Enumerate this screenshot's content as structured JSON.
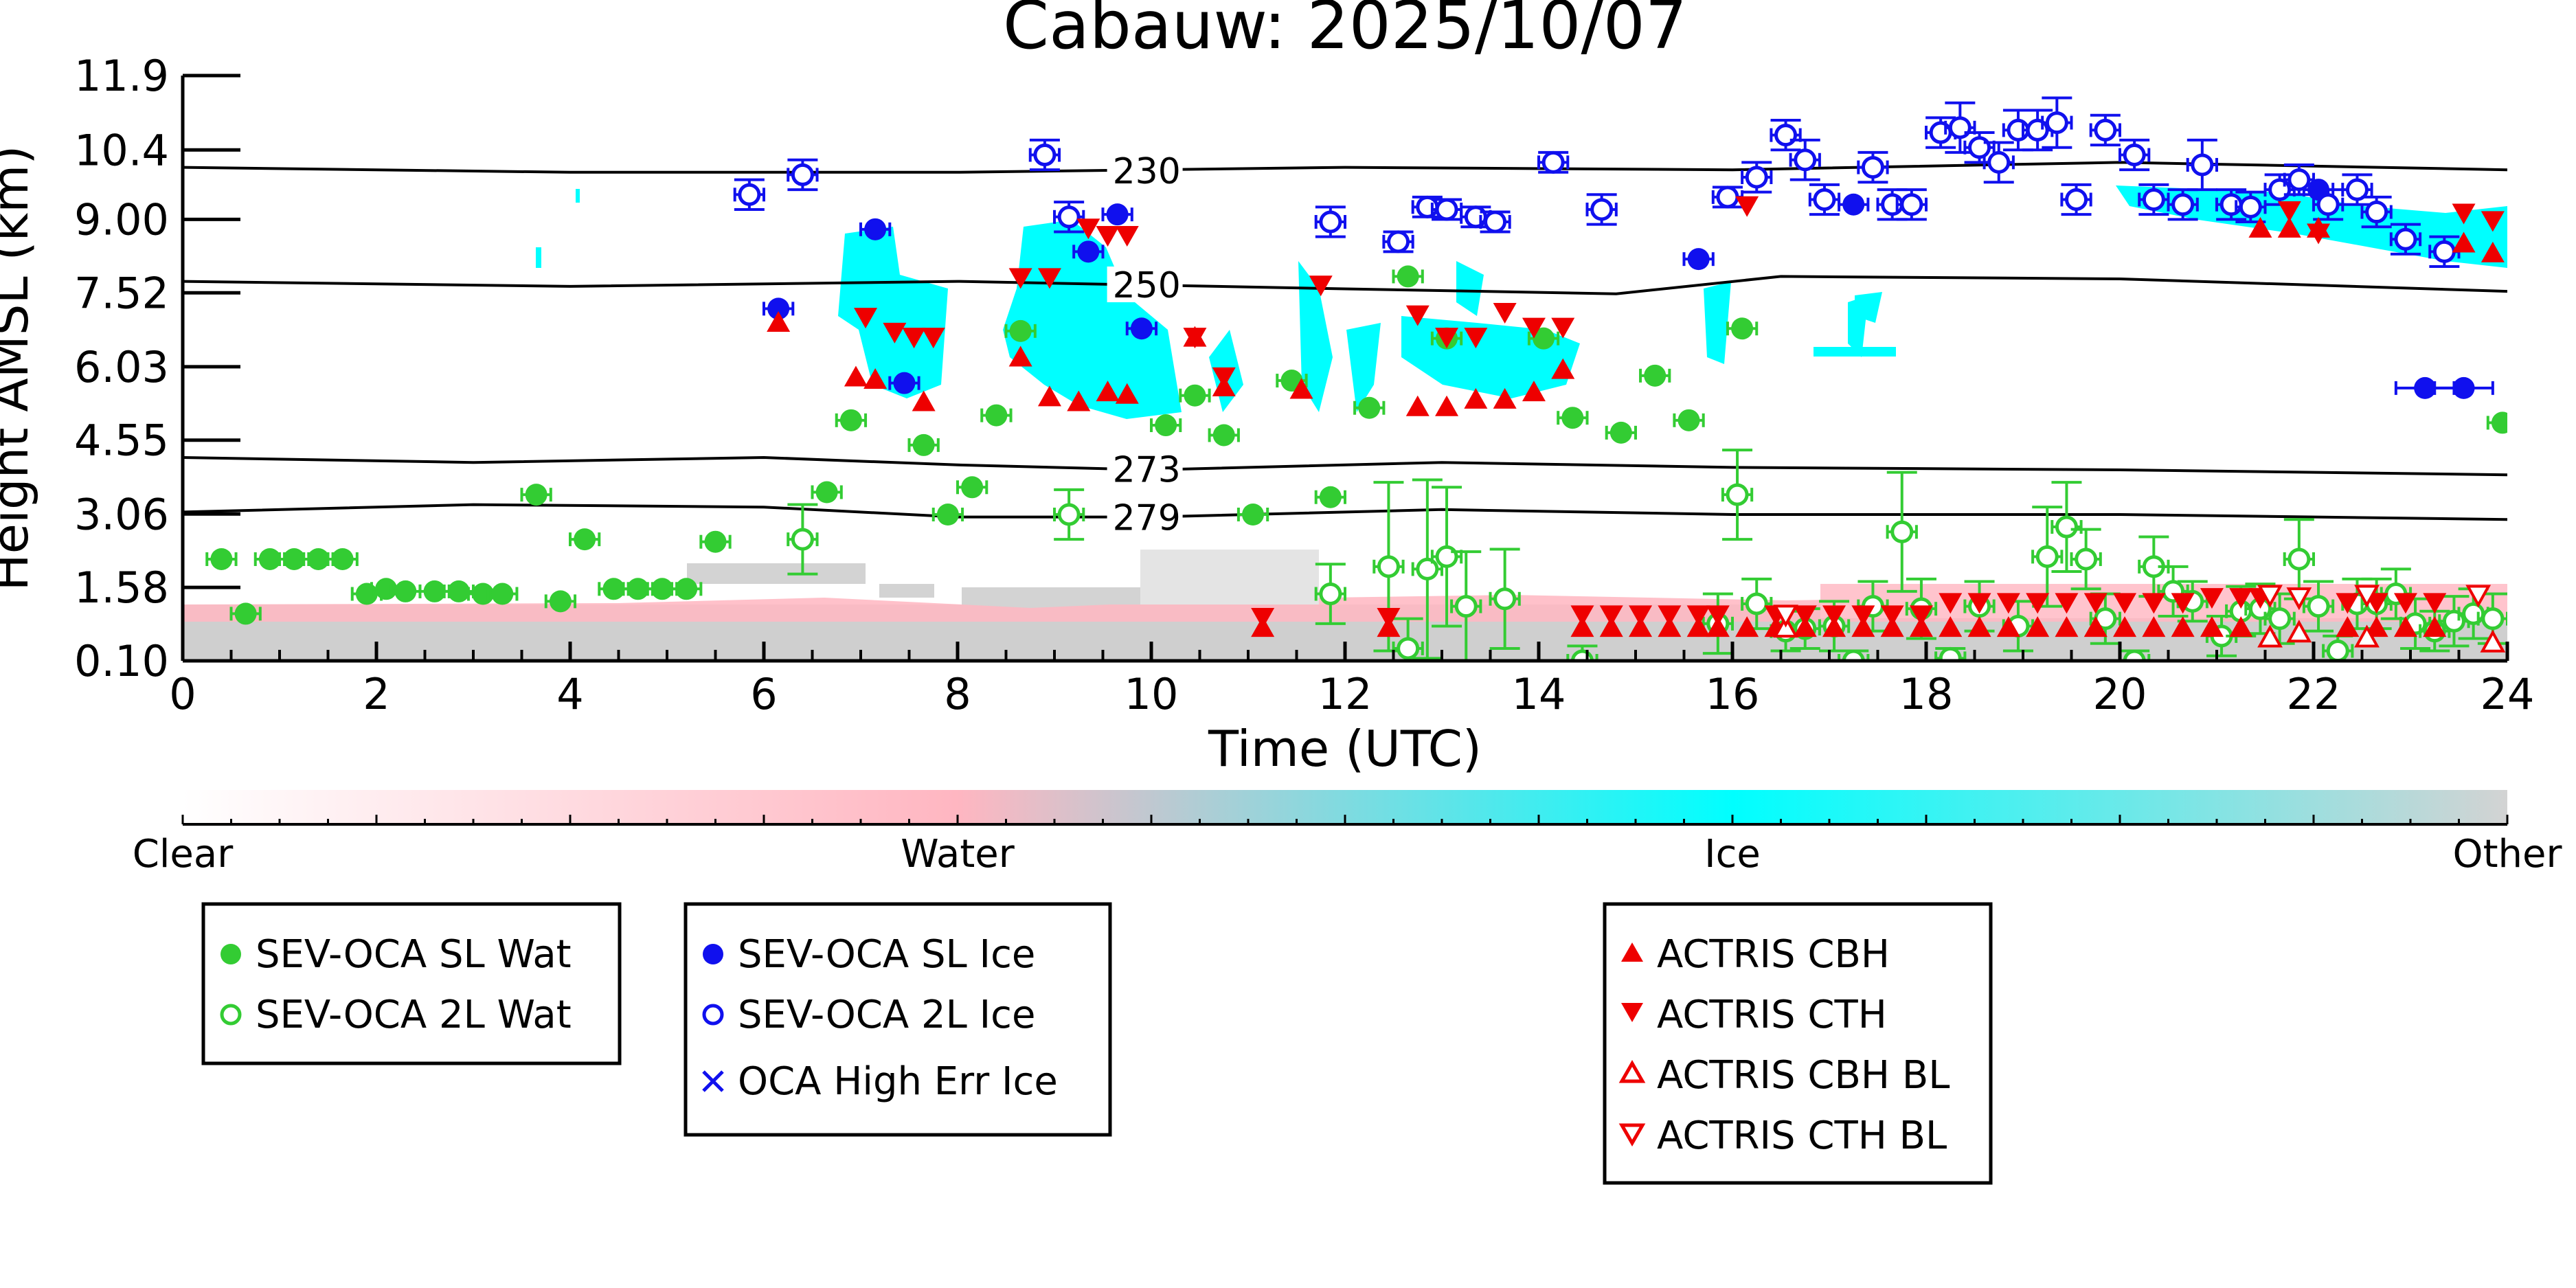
{
  "chart_data": {
    "type": "scatter",
    "title": "Cabauw: 2025/10/07",
    "xlabel": "Time (UTC)",
    "ylabel": "Height AMSL (km)",
    "xlim": [
      0,
      24
    ],
    "ylim": [
      0.1,
      11.9
    ],
    "xticks": [
      0,
      2,
      4,
      6,
      8,
      10,
      12,
      14,
      16,
      18,
      20,
      22,
      24
    ],
    "xtick_labels": [
      "0",
      "2",
      "4",
      "6",
      "8",
      "10",
      "12",
      "14",
      "16",
      "18",
      "20",
      "22",
      "24"
    ],
    "yticks": [
      0.1,
      1.58,
      3.06,
      4.55,
      6.03,
      7.52,
      9.0,
      10.4,
      11.9
    ],
    "ytick_labels": [
      "0.10",
      "1.58",
      "3.06",
      "4.55",
      "6.03",
      "7.52",
      "9.00",
      "10.4",
      "11.9"
    ],
    "isotherms": [
      {
        "label": "230",
        "label_x": 9.6,
        "x": [
          0,
          4,
          8,
          12,
          16,
          20,
          24
        ],
        "y": [
          10.05,
          9.95,
          9.95,
          10.05,
          10.0,
          10.15,
          10.0
        ]
      },
      {
        "label": "250",
        "label_x": 9.6,
        "x": [
          0,
          4,
          8,
          12,
          14.8,
          16.5,
          20,
          24
        ],
        "y": [
          7.75,
          7.65,
          7.75,
          7.6,
          7.5,
          7.85,
          7.8,
          7.55
        ]
      },
      {
        "label": "273",
        "label_x": 9.6,
        "x": [
          0,
          3,
          6,
          8,
          10,
          13,
          16,
          20,
          24
        ],
        "y": [
          4.2,
          4.1,
          4.2,
          4.05,
          3.95,
          4.1,
          4.0,
          3.95,
          3.85
        ]
      },
      {
        "label": "279",
        "label_x": 9.6,
        "x": [
          0,
          3,
          6,
          8,
          10,
          13,
          16,
          20,
          24
        ],
        "y": [
          3.1,
          3.25,
          3.2,
          3.0,
          3.0,
          3.15,
          3.05,
          3.05,
          2.95
        ]
      }
    ],
    "series": [
      {
        "name": "SEV-OCA SL Wat",
        "marker": "circle-filled",
        "color": "#33cc33",
        "x": [
          0.4,
          0.65,
          0.9,
          1.15,
          1.4,
          1.65,
          1.9,
          2.1,
          2.3,
          2.6,
          2.85,
          3.1,
          3.3,
          3.65,
          3.9,
          4.15,
          4.45,
          4.7,
          4.95,
          5.2,
          5.5,
          6.65,
          6.9,
          7.65,
          7.9,
          8.15,
          8.4,
          8.65,
          10.15,
          10.45,
          10.75,
          11.05,
          11.45,
          11.85,
          12.25,
          12.65,
          13.05,
          14.05,
          14.35,
          14.85,
          15.2,
          15.55,
          16.1,
          23.95
        ],
        "y": [
          2.15,
          1.05,
          2.15,
          2.15,
          2.15,
          2.15,
          1.45,
          1.55,
          1.5,
          1.5,
          1.5,
          1.45,
          1.45,
          3.45,
          1.3,
          2.55,
          1.55,
          1.55,
          1.55,
          1.55,
          2.5,
          3.5,
          4.95,
          4.45,
          3.05,
          3.6,
          5.05,
          6.75,
          4.85,
          5.45,
          4.65,
          3.05,
          5.75,
          3.4,
          5.2,
          7.85,
          6.6,
          6.6,
          5.0,
          4.7,
          5.85,
          4.95,
          6.8,
          4.9
        ],
        "xerr": [
          0.15,
          0.15,
          0.15,
          0.15,
          0.15,
          0.15,
          0.15,
          0.15,
          0.15,
          0.15,
          0.15,
          0.15,
          0.15,
          0.15,
          0.15,
          0.15,
          0.15,
          0.15,
          0.15,
          0.15,
          0.15,
          0.15,
          0.15,
          0.15,
          0.15,
          0.15,
          0.15,
          0.15,
          0.15,
          0.15,
          0.15,
          0.15,
          0.15,
          0.15,
          0.15,
          0.15,
          0.15,
          0.15,
          0.15,
          0.15,
          0.15,
          0.15,
          0.15,
          0.15
        ]
      },
      {
        "name": "SEV-OCA 2L Wat",
        "marker": "circle-open",
        "color": "#33cc33",
        "x": [
          6.4,
          9.15,
          11.85,
          12.45,
          12.65,
          12.85,
          13.05,
          13.25,
          13.65,
          14.45,
          15.85,
          16.05,
          16.25,
          16.55,
          16.75,
          17.05,
          17.25,
          17.45,
          17.75,
          17.95,
          18.25,
          18.55,
          18.95,
          19.25,
          19.45,
          19.65,
          19.85,
          20.15,
          20.35,
          20.55,
          20.75,
          21.05,
          21.25,
          21.45,
          21.65,
          21.85,
          22.05,
          22.25,
          22.45,
          22.65,
          22.85,
          23.05,
          23.25,
          23.45,
          23.65,
          23.85
        ],
        "y": [
          2.55,
          3.05,
          1.45,
          2.0,
          0.35,
          1.95,
          2.2,
          1.2,
          1.35,
          0.1,
          0.85,
          3.45,
          1.25,
          0.7,
          0.75,
          0.8,
          0.1,
          1.2,
          2.7,
          1.15,
          0.15,
          1.2,
          0.8,
          2.2,
          2.8,
          2.15,
          0.95,
          0.1,
          2.0,
          1.5,
          1.3,
          0.6,
          1.1,
          1.15,
          0.95,
          2.15,
          1.2,
          0.3,
          1.25,
          1.25,
          1.45,
          0.85,
          0.7,
          0.9,
          1.05,
          0.95
        ],
        "yerr": [
          0.7,
          0.5,
          0.6,
          1.7,
          0.6,
          1.8,
          1.4,
          1.1,
          1.0,
          0.3,
          0.6,
          0.9,
          0.5,
          0.4,
          0.4,
          0.5,
          0.2,
          0.5,
          1.2,
          0.6,
          0.2,
          0.5,
          0.5,
          1.0,
          0.9,
          0.6,
          0.5,
          0.2,
          0.6,
          0.5,
          0.4,
          0.4,
          0.5,
          0.5,
          0.5,
          0.8,
          0.5,
          0.3,
          0.5,
          0.5,
          0.5,
          0.5,
          0.4,
          0.5,
          0.5,
          0.5
        ],
        "xerr": [
          0.15,
          0.15,
          0.15,
          0.15,
          0.15,
          0.15,
          0.15,
          0.15,
          0.15,
          0.15,
          0.15,
          0.15,
          0.15,
          0.15,
          0.15,
          0.15,
          0.15,
          0.15,
          0.15,
          0.15,
          0.15,
          0.15,
          0.15,
          0.15,
          0.15,
          0.15,
          0.15,
          0.15,
          0.15,
          0.15,
          0.15,
          0.15,
          0.15,
          0.15,
          0.15,
          0.15,
          0.15,
          0.15,
          0.15,
          0.15,
          0.15,
          0.15,
          0.15,
          0.15,
          0.15,
          0.15
        ]
      },
      {
        "name": "SEV-OCA SL Ice",
        "marker": "circle-filled",
        "color": "#1010ee",
        "x": [
          6.15,
          7.15,
          7.45,
          9.35,
          9.65,
          9.9,
          15.65,
          17.25,
          22.05,
          23.15,
          23.55
        ],
        "y": [
          7.2,
          8.8,
          5.7,
          8.35,
          9.1,
          6.8,
          8.2,
          9.3,
          9.6,
          5.6,
          5.6
        ],
        "xerr": [
          0.15,
          0.15,
          0.15,
          0.15,
          0.15,
          0.15,
          0.15,
          0.15,
          0.15,
          0.3,
          0.3
        ]
      },
      {
        "name": "SEV-OCA 2L Ice",
        "marker": "circle-open",
        "color": "#1010ee",
        "x": [
          5.85,
          6.4,
          8.9,
          9.15,
          11.85,
          12.55,
          12.85,
          13.05,
          13.35,
          13.55,
          14.15,
          14.65,
          15.95,
          16.25,
          16.55,
          16.75,
          16.95,
          17.45,
          17.65,
          17.85,
          18.15,
          18.35,
          18.55,
          18.75,
          18.95,
          19.15,
          19.35,
          19.55,
          19.85,
          20.15,
          20.35,
          20.65,
          20.85,
          21.15,
          21.35,
          21.65,
          21.85,
          22.15,
          22.45,
          22.65,
          22.95,
          23.35
        ],
        "y": [
          9.5,
          9.9,
          10.3,
          9.05,
          8.95,
          8.55,
          9.25,
          9.2,
          9.05,
          8.95,
          10.15,
          9.2,
          9.45,
          9.85,
          10.7,
          10.2,
          9.4,
          10.05,
          9.3,
          9.3,
          10.75,
          10.85,
          10.45,
          10.15,
          10.8,
          10.8,
          10.95,
          9.4,
          10.8,
          10.3,
          9.4,
          9.3,
          10.1,
          9.3,
          9.25,
          9.6,
          9.8,
          9.3,
          9.6,
          9.15,
          8.6,
          8.35
        ],
        "yerr": [
          0.3,
          0.3,
          0.3,
          0.3,
          0.3,
          0.2,
          0.2,
          0.2,
          0.2,
          0.2,
          0.2,
          0.3,
          0.2,
          0.3,
          0.3,
          0.4,
          0.3,
          0.3,
          0.3,
          0.3,
          0.3,
          0.5,
          0.3,
          0.4,
          0.4,
          0.4,
          0.5,
          0.3,
          0.3,
          0.3,
          0.3,
          0.3,
          0.5,
          0.3,
          0.3,
          0.3,
          0.3,
          0.3,
          0.3,
          0.3,
          0.3,
          0.3
        ],
        "xerr": [
          0.15,
          0.15,
          0.15,
          0.15,
          0.15,
          0.15,
          0.15,
          0.15,
          0.15,
          0.15,
          0.15,
          0.15,
          0.15,
          0.15,
          0.15,
          0.15,
          0.15,
          0.15,
          0.15,
          0.15,
          0.15,
          0.15,
          0.15,
          0.15,
          0.15,
          0.15,
          0.15,
          0.15,
          0.15,
          0.15,
          0.15,
          0.15,
          0.15,
          0.15,
          0.15,
          0.15,
          0.15,
          0.15,
          0.15,
          0.15,
          0.15,
          0.15
        ]
      },
      {
        "name": "OCA High Err Ice",
        "marker": "x",
        "color": "#1010ee",
        "x": [],
        "y": []
      },
      {
        "name": "ACTRIS CBH",
        "marker": "triangle-up-filled",
        "color": "#ee0000",
        "x": [
          6.15,
          6.95,
          7.15,
          7.65,
          8.65,
          8.95,
          9.25,
          9.55,
          9.75,
          10.45,
          10.75,
          11.15,
          11.55,
          12.45,
          12.75,
          13.05,
          13.35,
          13.65,
          13.95,
          14.25,
          14.45,
          14.75,
          15.05,
          15.35,
          15.65,
          15.85,
          16.15,
          16.45,
          16.75,
          17.05,
          17.35,
          17.65,
          17.95,
          18.25,
          18.55,
          18.85,
          19.15,
          19.45,
          19.75,
          20.05,
          20.35,
          20.65,
          20.95,
          21.25,
          21.45,
          21.75,
          22.05,
          22.35,
          22.65,
          22.95,
          23.25,
          23.55,
          23.85
        ],
        "y": [
          6.9,
          5.8,
          5.75,
          5.3,
          6.2,
          5.4,
          5.3,
          5.5,
          5.45,
          6.6,
          5.6,
          0.75,
          5.55,
          0.75,
          5.2,
          5.2,
          5.35,
          5.35,
          5.5,
          5.95,
          0.75,
          0.75,
          0.75,
          0.75,
          0.75,
          0.75,
          0.75,
          0.75,
          0.75,
          0.75,
          0.75,
          0.75,
          0.75,
          0.75,
          0.75,
          0.75,
          0.75,
          0.75,
          0.75,
          0.75,
          0.75,
          0.75,
          0.75,
          0.75,
          8.8,
          8.8,
          8.8,
          0.75,
          0.75,
          0.75,
          0.75,
          8.5,
          8.3
        ]
      },
      {
        "name": "ACTRIS CTH",
        "marker": "triangle-down-filled",
        "color": "#ee0000",
        "x": [
          7.05,
          7.35,
          7.55,
          7.75,
          8.65,
          8.95,
          9.35,
          9.55,
          9.75,
          10.45,
          10.75,
          11.15,
          11.75,
          12.45,
          12.75,
          13.05,
          13.35,
          13.65,
          13.95,
          14.25,
          14.45,
          14.75,
          15.05,
          15.35,
          15.65,
          15.85,
          16.15,
          16.45,
          16.75,
          17.05,
          17.35,
          17.65,
          17.95,
          18.25,
          18.55,
          18.85,
          19.15,
          19.45,
          19.75,
          20.05,
          20.35,
          20.65,
          20.95,
          21.25,
          21.45,
          21.75,
          22.05,
          22.35,
          22.65,
          22.95,
          23.25,
          23.55,
          23.85
        ],
        "y": [
          7.05,
          6.75,
          6.65,
          6.65,
          7.85,
          7.85,
          8.85,
          8.7,
          8.7,
          6.65,
          5.85,
          1.0,
          7.7,
          1.0,
          7.1,
          6.65,
          6.65,
          7.15,
          6.85,
          6.85,
          1.05,
          1.05,
          1.05,
          1.05,
          1.05,
          1.05,
          9.3,
          1.05,
          1.05,
          1.05,
          1.05,
          1.05,
          1.05,
          1.3,
          1.3,
          1.3,
          1.3,
          1.3,
          1.3,
          1.3,
          1.3,
          1.3,
          1.4,
          1.4,
          1.4,
          9.2,
          8.75,
          1.3,
          1.3,
          1.3,
          1.3,
          9.15,
          9.0
        ]
      },
      {
        "name": "ACTRIS CBH BL",
        "marker": "triangle-up-open",
        "color": "#ee0000",
        "x": [
          16.55,
          21.55,
          21.85,
          22.55,
          23.85
        ],
        "y": [
          0.75,
          0.55,
          0.65,
          0.55,
          0.45
        ]
      },
      {
        "name": "ACTRIS CTH BL",
        "marker": "triangle-down-open",
        "color": "#ee0000",
        "x": [
          16.55,
          21.55,
          21.85,
          22.55,
          23.7
        ],
        "y": [
          1.05,
          1.45,
          1.4,
          1.45,
          1.45
        ]
      }
    ],
    "colorbar": {
      "labels": [
        "Clear",
        "Water",
        "Ice",
        "Other"
      ],
      "colors": [
        "#ffffff",
        "#ffb6c1",
        "#00ffff",
        "#d3d3d3"
      ]
    },
    "legend_groups": [
      [
        "SEV-OCA SL Wat",
        "SEV-OCA 2L Wat"
      ],
      [
        "SEV-OCA SL Ice",
        "SEV-OCA 2L Ice",
        "OCA High Err Ice"
      ],
      [
        "ACTRIS CBH",
        "ACTRIS CTH",
        "ACTRIS CBH BL",
        "ACTRIS CTH BL"
      ]
    ],
    "legend_placement": "below-plot"
  }
}
